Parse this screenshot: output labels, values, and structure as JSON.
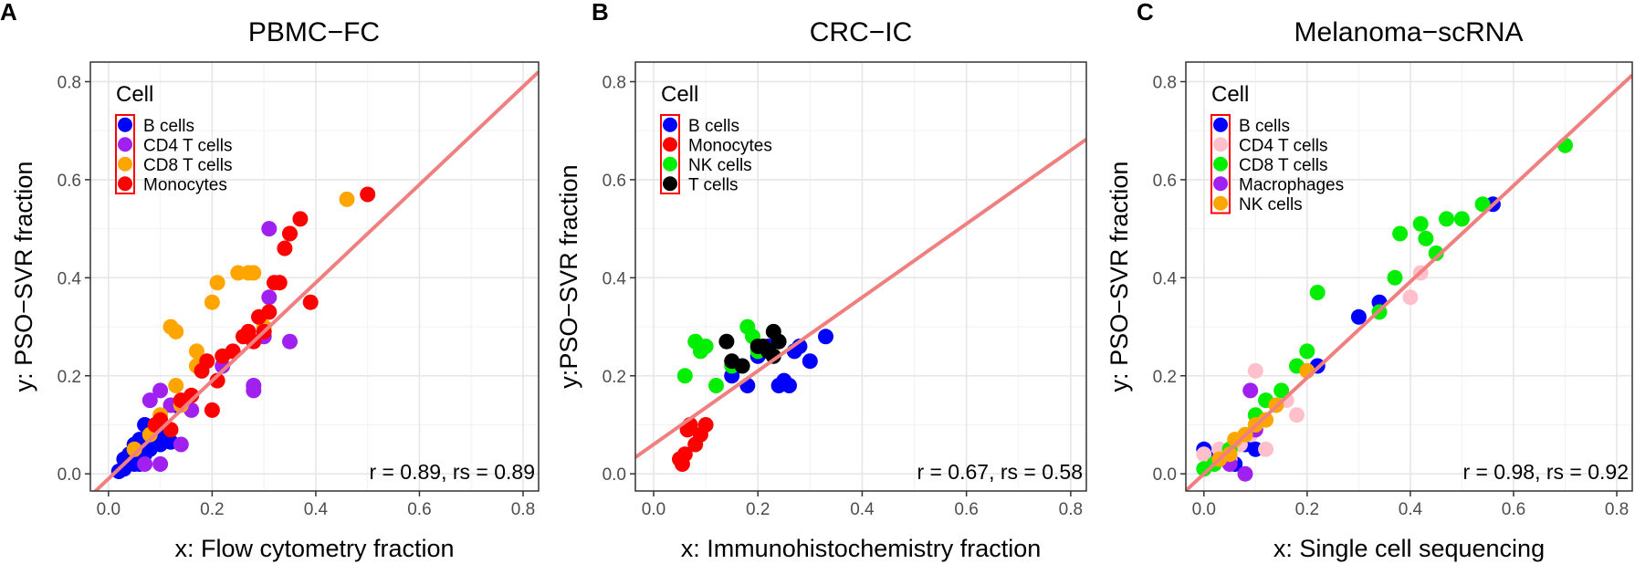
{
  "chart_data": [
    {
      "panel": "A",
      "type": "scatter",
      "title": "PBMC−FC",
      "xlabel": "x: Flow cytometry fraction",
      "ylabel": "y: PSO−SVR fraction",
      "xlim": [
        -0.035,
        0.83
      ],
      "ylim": [
        -0.035,
        0.84
      ],
      "xticks": [
        0.0,
        0.2,
        0.4,
        0.6,
        0.8
      ],
      "yticks": [
        0.0,
        0.2,
        0.4,
        0.6,
        0.8
      ],
      "xtick_labels": [
        "0.0",
        "0.2",
        "0.4",
        "0.6",
        "0.8"
      ],
      "ytick_labels": [
        "0.0",
        "0.2",
        "0.4",
        "0.6",
        "0.8"
      ],
      "grid": true,
      "legend_title": "Cell",
      "legend_position": "top-left",
      "annotation": "r = 0.89, rs = 0.89",
      "fit_line": {
        "intercept": -0.01,
        "slope": 1.0,
        "color": "#F08080"
      },
      "series": [
        {
          "name": "B cells",
          "color": "#0000FF",
          "x": [
            0.02,
            0.03,
            0.04,
            0.05,
            0.06,
            0.07,
            0.08,
            0.09,
            0.1,
            0.11,
            0.12,
            0.03,
            0.05,
            0.07,
            0.09,
            0.13,
            0.06
          ],
          "y": [
            0.005,
            0.03,
            0.04,
            0.06,
            0.07,
            0.1,
            0.05,
            0.07,
            0.06,
            0.08,
            0.065,
            0.01,
            0.02,
            0.04,
            0.09,
            0.14,
            0.02
          ]
        },
        {
          "name": "CD4 T cells",
          "color": "#A020F0",
          "x": [
            0.07,
            0.08,
            0.1,
            0.12,
            0.14,
            0.16,
            0.22,
            0.28,
            0.28,
            0.3,
            0.31,
            0.35,
            0.31,
            0.1
          ],
          "y": [
            0.02,
            0.15,
            0.17,
            0.14,
            0.06,
            0.13,
            0.22,
            0.17,
            0.18,
            0.28,
            0.5,
            0.27,
            0.36,
            0.02
          ]
        },
        {
          "name": "CD8 T cells",
          "color": "#FFA500",
          "x": [
            0.05,
            0.08,
            0.1,
            0.12,
            0.13,
            0.13,
            0.14,
            0.17,
            0.17,
            0.2,
            0.21,
            0.25,
            0.27,
            0.28,
            0.3,
            0.33,
            0.35,
            0.46
          ],
          "y": [
            0.05,
            0.08,
            0.12,
            0.3,
            0.29,
            0.18,
            0.14,
            0.25,
            0.22,
            0.35,
            0.39,
            0.41,
            0.41,
            0.41,
            0.3,
            0.39,
            0.49,
            0.56
          ]
        },
        {
          "name": "Monocytes",
          "color": "#FF0000",
          "x": [
            0.09,
            0.1,
            0.12,
            0.14,
            0.16,
            0.18,
            0.19,
            0.2,
            0.21,
            0.22,
            0.24,
            0.26,
            0.27,
            0.28,
            0.29,
            0.3,
            0.31,
            0.32,
            0.33,
            0.34,
            0.35,
            0.37,
            0.39,
            0.5
          ],
          "y": [
            0.1,
            0.11,
            0.09,
            0.15,
            0.16,
            0.21,
            0.23,
            0.13,
            0.19,
            0.24,
            0.25,
            0.28,
            0.29,
            0.27,
            0.32,
            0.29,
            0.33,
            0.39,
            0.39,
            0.46,
            0.49,
            0.52,
            0.35,
            0.57
          ]
        }
      ]
    },
    {
      "panel": "B",
      "type": "scatter",
      "title": "CRC−IC",
      "xlabel": "x: Immunohistochemistry fraction",
      "ylabel": "y:PSO−SVR fraction",
      "xlim": [
        -0.035,
        0.83
      ],
      "ylim": [
        -0.035,
        0.84
      ],
      "xticks": [
        0.0,
        0.2,
        0.4,
        0.6,
        0.8
      ],
      "yticks": [
        0.0,
        0.2,
        0.4,
        0.6,
        0.8
      ],
      "xtick_labels": [
        "0.0",
        "0.2",
        "0.4",
        "0.6",
        "0.8"
      ],
      "ytick_labels": [
        "0.0",
        "0.2",
        "0.4",
        "0.6",
        "0.8"
      ],
      "grid": true,
      "legend_title": "Cell",
      "legend_position": "top-left",
      "annotation": "r = 0.67, rs = 0.58",
      "fit_line": {
        "intercept": 0.06,
        "slope": 0.75,
        "color": "#F08080"
      },
      "series": [
        {
          "name": "B cells",
          "color": "#0000FF",
          "x": [
            0.15,
            0.18,
            0.2,
            0.22,
            0.24,
            0.25,
            0.26,
            0.27,
            0.28,
            0.3,
            0.33
          ],
          "y": [
            0.2,
            0.18,
            0.24,
            0.26,
            0.18,
            0.19,
            0.18,
            0.25,
            0.26,
            0.23,
            0.28
          ]
        },
        {
          "name": "Monocytes",
          "color": "#FF0000",
          "x": [
            0.05,
            0.055,
            0.06,
            0.065,
            0.07,
            0.08,
            0.09,
            0.1
          ],
          "y": [
            0.03,
            0.02,
            0.04,
            0.09,
            0.1,
            0.06,
            0.08,
            0.1
          ]
        },
        {
          "name": "NK cells",
          "color": "#00EE00",
          "x": [
            0.06,
            0.08,
            0.09,
            0.1,
            0.12,
            0.15,
            0.18,
            0.19,
            0.2
          ],
          "y": [
            0.2,
            0.27,
            0.25,
            0.26,
            0.18,
            0.22,
            0.3,
            0.28,
            0.25
          ]
        },
        {
          "name": "T cells",
          "color": "#000000",
          "x": [
            0.14,
            0.15,
            0.17,
            0.2,
            0.21,
            0.22,
            0.23,
            0.24,
            0.23
          ],
          "y": [
            0.27,
            0.23,
            0.22,
            0.26,
            0.26,
            0.25,
            0.24,
            0.27,
            0.29
          ]
        }
      ]
    },
    {
      "panel": "C",
      "type": "scatter",
      "title": "Melanoma−scRNA",
      "xlabel": "x: Single cell sequencing",
      "ylabel": "y: PSO−SVR fraction",
      "xlim": [
        -0.035,
        0.83
      ],
      "ylim": [
        -0.035,
        0.84
      ],
      "xticks": [
        0.0,
        0.2,
        0.4,
        0.6,
        0.8
      ],
      "yticks": [
        0.0,
        0.2,
        0.4,
        0.6,
        0.8
      ],
      "xtick_labels": [
        "0.0",
        "0.2",
        "0.4",
        "0.6",
        "0.8"
      ],
      "ytick_labels": [
        "0.0",
        "0.2",
        "0.4",
        "0.6",
        "0.8"
      ],
      "grid": true,
      "legend_title": "Cell",
      "legend_position": "top-left",
      "annotation": "r = 0.98, rs = 0.92",
      "fit_line": {
        "intercept": 0.0,
        "slope": 0.98,
        "color": "#F08080"
      },
      "series": [
        {
          "name": "B cells",
          "color": "#0000FF",
          "x": [
            0.0,
            0.02,
            0.04,
            0.06,
            0.08,
            0.1,
            0.22,
            0.3,
            0.34,
            0.56
          ],
          "y": [
            0.05,
            0.03,
            0.04,
            0.02,
            0.06,
            0.05,
            0.22,
            0.32,
            0.35,
            0.55
          ]
        },
        {
          "name": "CD4 T cells",
          "color": "#FFC0CB",
          "x": [
            0.0,
            0.02,
            0.03,
            0.05,
            0.07,
            0.09,
            0.1,
            0.12,
            0.16,
            0.18,
            0.4,
            0.42
          ],
          "y": [
            0.04,
            0.02,
            0.05,
            0.03,
            0.06,
            0.08,
            0.21,
            0.05,
            0.15,
            0.12,
            0.36,
            0.41
          ]
        },
        {
          "name": "CD8 T cells",
          "color": "#00EE00",
          "x": [
            0.0,
            0.02,
            0.05,
            0.1,
            0.12,
            0.15,
            0.18,
            0.2,
            0.22,
            0.34,
            0.37,
            0.38,
            0.42,
            0.43,
            0.45,
            0.47,
            0.5,
            0.54,
            0.7
          ],
          "y": [
            0.01,
            0.02,
            0.05,
            0.12,
            0.15,
            0.17,
            0.22,
            0.25,
            0.37,
            0.33,
            0.4,
            0.49,
            0.51,
            0.48,
            0.45,
            0.52,
            0.52,
            0.55,
            0.67
          ]
        },
        {
          "name": "Macrophages",
          "color": "#A020F0",
          "x": [
            0.05,
            0.09,
            0.1,
            0.08
          ],
          "y": [
            0.02,
            0.17,
            0.09,
            0.0
          ]
        },
        {
          "name": "NK cells",
          "color": "#FFA500",
          "x": [
            0.03,
            0.05,
            0.06,
            0.08,
            0.1,
            0.12,
            0.14,
            0.2
          ],
          "y": [
            0.03,
            0.04,
            0.07,
            0.08,
            0.1,
            0.11,
            0.14,
            0.21
          ]
        }
      ]
    }
  ],
  "panel_letters": [
    "A",
    "B",
    "C"
  ]
}
